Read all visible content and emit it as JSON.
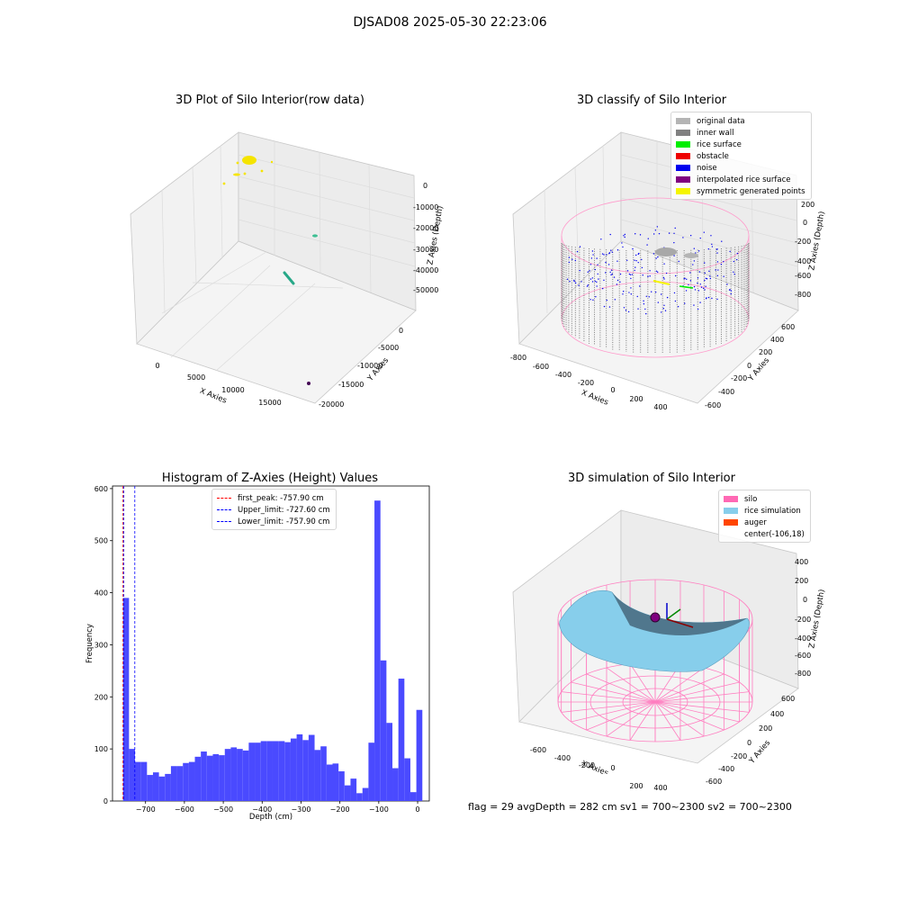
{
  "suptitle": "DJSAD08 2025-05-30 22:23:06",
  "footer": "flag = 29  avgDepth = 282 cm  sv1 = 700~2300  sv2 = 700~2300",
  "chart_data": [
    {
      "type": "scatter",
      "title": "3D Plot of Silo Interior(row data)",
      "xlabel": "X Axies",
      "ylabel": "Y Axies",
      "zlabel": "Z Axies (Depth)",
      "xticks": [
        "0",
        "5000",
        "10000",
        "15000"
      ],
      "yticks": [
        "0",
        "-5000",
        "-10000",
        "-15000",
        "-20000"
      ],
      "zticks": [
        "0",
        "-10000",
        "-20000",
        "-30000",
        "-40000",
        "-50000"
      ],
      "clusters": [
        {
          "name": "yellow cluster",
          "color": "#f5e400",
          "x": 1000,
          "y": -500,
          "z": -500
        },
        {
          "name": "teal small",
          "color": "#3dbf93",
          "x": 10000,
          "y": -2000,
          "z": -25000
        },
        {
          "name": "teal streak",
          "color": "#27a888",
          "x": 8500,
          "y": -6000,
          "z": -42000
        },
        {
          "name": "purple point",
          "color": "#440154",
          "x": 15500,
          "y": -17000,
          "z": -55000
        }
      ]
    },
    {
      "type": "scatter",
      "title": "3D classify of Silo Interior",
      "xlabel": "X Axies",
      "ylabel": "Y Axies",
      "zlabel": "Z Axies (Depth)",
      "xticks": [
        "-800",
        "-600",
        "-400",
        "-200",
        "0",
        "200",
        "400"
      ],
      "yticks": [
        "600",
        "400",
        "200",
        "0",
        "-200",
        "-400",
        "-600"
      ],
      "zticks": [
        "200",
        "0",
        "-200",
        "-400",
        "-600",
        "-800"
      ],
      "legend": [
        {
          "label": "original data",
          "color": "#b4b4b4"
        },
        {
          "label": "inner wall",
          "color": "#808080"
        },
        {
          "label": "rice surface",
          "color": "#00ee00"
        },
        {
          "label": "obstacle",
          "color": "#ee0000"
        },
        {
          "label": "noise",
          "color": "#0000ee"
        },
        {
          "label": "interpolated rice surface",
          "color": "#800080"
        },
        {
          "label": "symmetric generated points",
          "color": "#f5f500"
        }
      ]
    },
    {
      "type": "bar",
      "title": "Histogram of Z-Axies (Height) Values",
      "xlabel": "Depth (cm)",
      "ylabel": "Frequency",
      "xlim": [
        -785,
        30
      ],
      "ylim": [
        0,
        605
      ],
      "xticks": [
        -700,
        -600,
        -500,
        -400,
        -300,
        -200,
        -100,
        0
      ],
      "yticks": [
        0,
        100,
        200,
        300,
        400,
        500,
        600
      ],
      "bin_start": -757.9,
      "bin_width": 15.4,
      "values": [
        390,
        100,
        75,
        75,
        50,
        55,
        47,
        52,
        67,
        67,
        73,
        75,
        85,
        95,
        87,
        90,
        88,
        100,
        103,
        100,
        97,
        112,
        112,
        115,
        115,
        115,
        115,
        113,
        120,
        128,
        117,
        127,
        98,
        105,
        70,
        72,
        57,
        30,
        43,
        15,
        25,
        112,
        577,
        270,
        150,
        63,
        235,
        82,
        17,
        175
      ],
      "bar_color": "#4a4aff",
      "lines": [
        {
          "label": "first_peak: -757.90 cm",
          "x": -757.9,
          "color": "#ff0000"
        },
        {
          "label": "Upper_limit: -727.60 cm",
          "x": -727.6,
          "color": "#0000ff"
        },
        {
          "label": "Lower_limit: -757.90 cm",
          "x": -757.9,
          "color": "#0000ff"
        }
      ]
    },
    {
      "type": "area",
      "title": "3D simulation of Silo Interior",
      "xlabel": "X Axies",
      "ylabel": "Y Axies",
      "zlabel": "Z Axies (Depth)",
      "xticks": [
        "-600",
        "-400",
        "-200",
        "0",
        "200",
        "400"
      ],
      "yticks": [
        "600",
        "400",
        "200",
        "0",
        "-200",
        "-400",
        "-600"
      ],
      "zticks": [
        "400",
        "200",
        "0",
        "-200",
        "-400",
        "-600",
        "-800"
      ],
      "legend": [
        {
          "label": "silo",
          "color": "#ff69b4"
        },
        {
          "label": "rice simulation",
          "color": "#87ceeb"
        },
        {
          "label": "auger",
          "color": "#ff4500"
        },
        {
          "label": "center(-106,18)",
          "color": ""
        }
      ]
    }
  ]
}
